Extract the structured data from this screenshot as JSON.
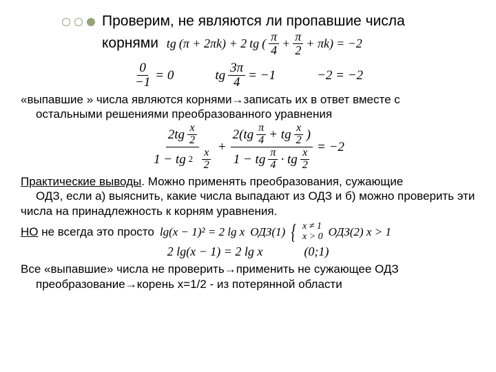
{
  "title": {
    "line1": "Проверим, не являются ли пропавшие числа",
    "line2": "корнями"
  },
  "headFormula": {
    "tg": "tg",
    "arg1a": "(π + 2πk) + 2",
    "arg2open": "(",
    "frac1_num": "π",
    "frac1_den": "4",
    "plus": " + ",
    "frac2_num": "π",
    "frac2_den": "2",
    "arg2close": " + πk)",
    "rhs": " = −2"
  },
  "row1": {
    "f1_num": "0",
    "f1_den": "−1",
    "f1_rhs": " = 0",
    "tg": "tg",
    "f2_num": "3π",
    "f2_den": "4",
    "f2_rhs": " = −1",
    "f3": "−2 = −2"
  },
  "para1a": "«выпавшие » числа являются корнями→записать их в ответ вместе с",
  "para1b": "остальными решениями преобразованного уравнения",
  "bigEq": {
    "t1_num_a": "2tg ",
    "t1_num_frac_num": "x",
    "t1_num_frac_den": "2",
    "t1_den_a": "1 − tg",
    "t1_den_sup": "2",
    "t1_den_frac_num": "x",
    "t1_den_frac_den": "2",
    "plus": " + ",
    "t2_num_a": "2(tg ",
    "t2_num_f1_num": "π",
    "t2_num_f1_den": "4",
    "t2_num_mid": " + tg ",
    "t2_num_f2_num": "x",
    "t2_num_f2_den": "2",
    "t2_num_close": ")",
    "t2_den_a": "1 − tg ",
    "t2_den_f1_num": "π",
    "t2_den_f1_den": "4",
    "t2_den_mid": " · tg ",
    "t2_den_f2_num": "x",
    "t2_den_f2_den": "2",
    "rhs": " = −2"
  },
  "para2_lead": "Практические выводы",
  "para2a": ". Можно применять преобразования, сужающие",
  "para2b": "ОДЗ, если   а) выяснить, какие числа выпадают из ОДЗ   и    б) можно проверить эти числа на принадлежность к корням уравнения.",
  "para3_lead": "НО",
  "para3a": " не всегда это просто",
  "row3_eq": "lg(x − 1)² = 2 lg x",
  "row3_od1": "ОДЗ(1)",
  "row3_br_top": "x ≠ 1",
  "row3_br_bot": "x > 0",
  "row3_od2": "ОДЗ(2) x > 1",
  "row4_eq": "2 lg(x − 1) = 2 lg x",
  "row4_int": "(0;1)",
  "para4a": "Все «выпавшие» числа не проверить→применить не сужающее ОДЗ",
  "para4b": "преобразование→корень x=1/2 - из потерянной области"
}
